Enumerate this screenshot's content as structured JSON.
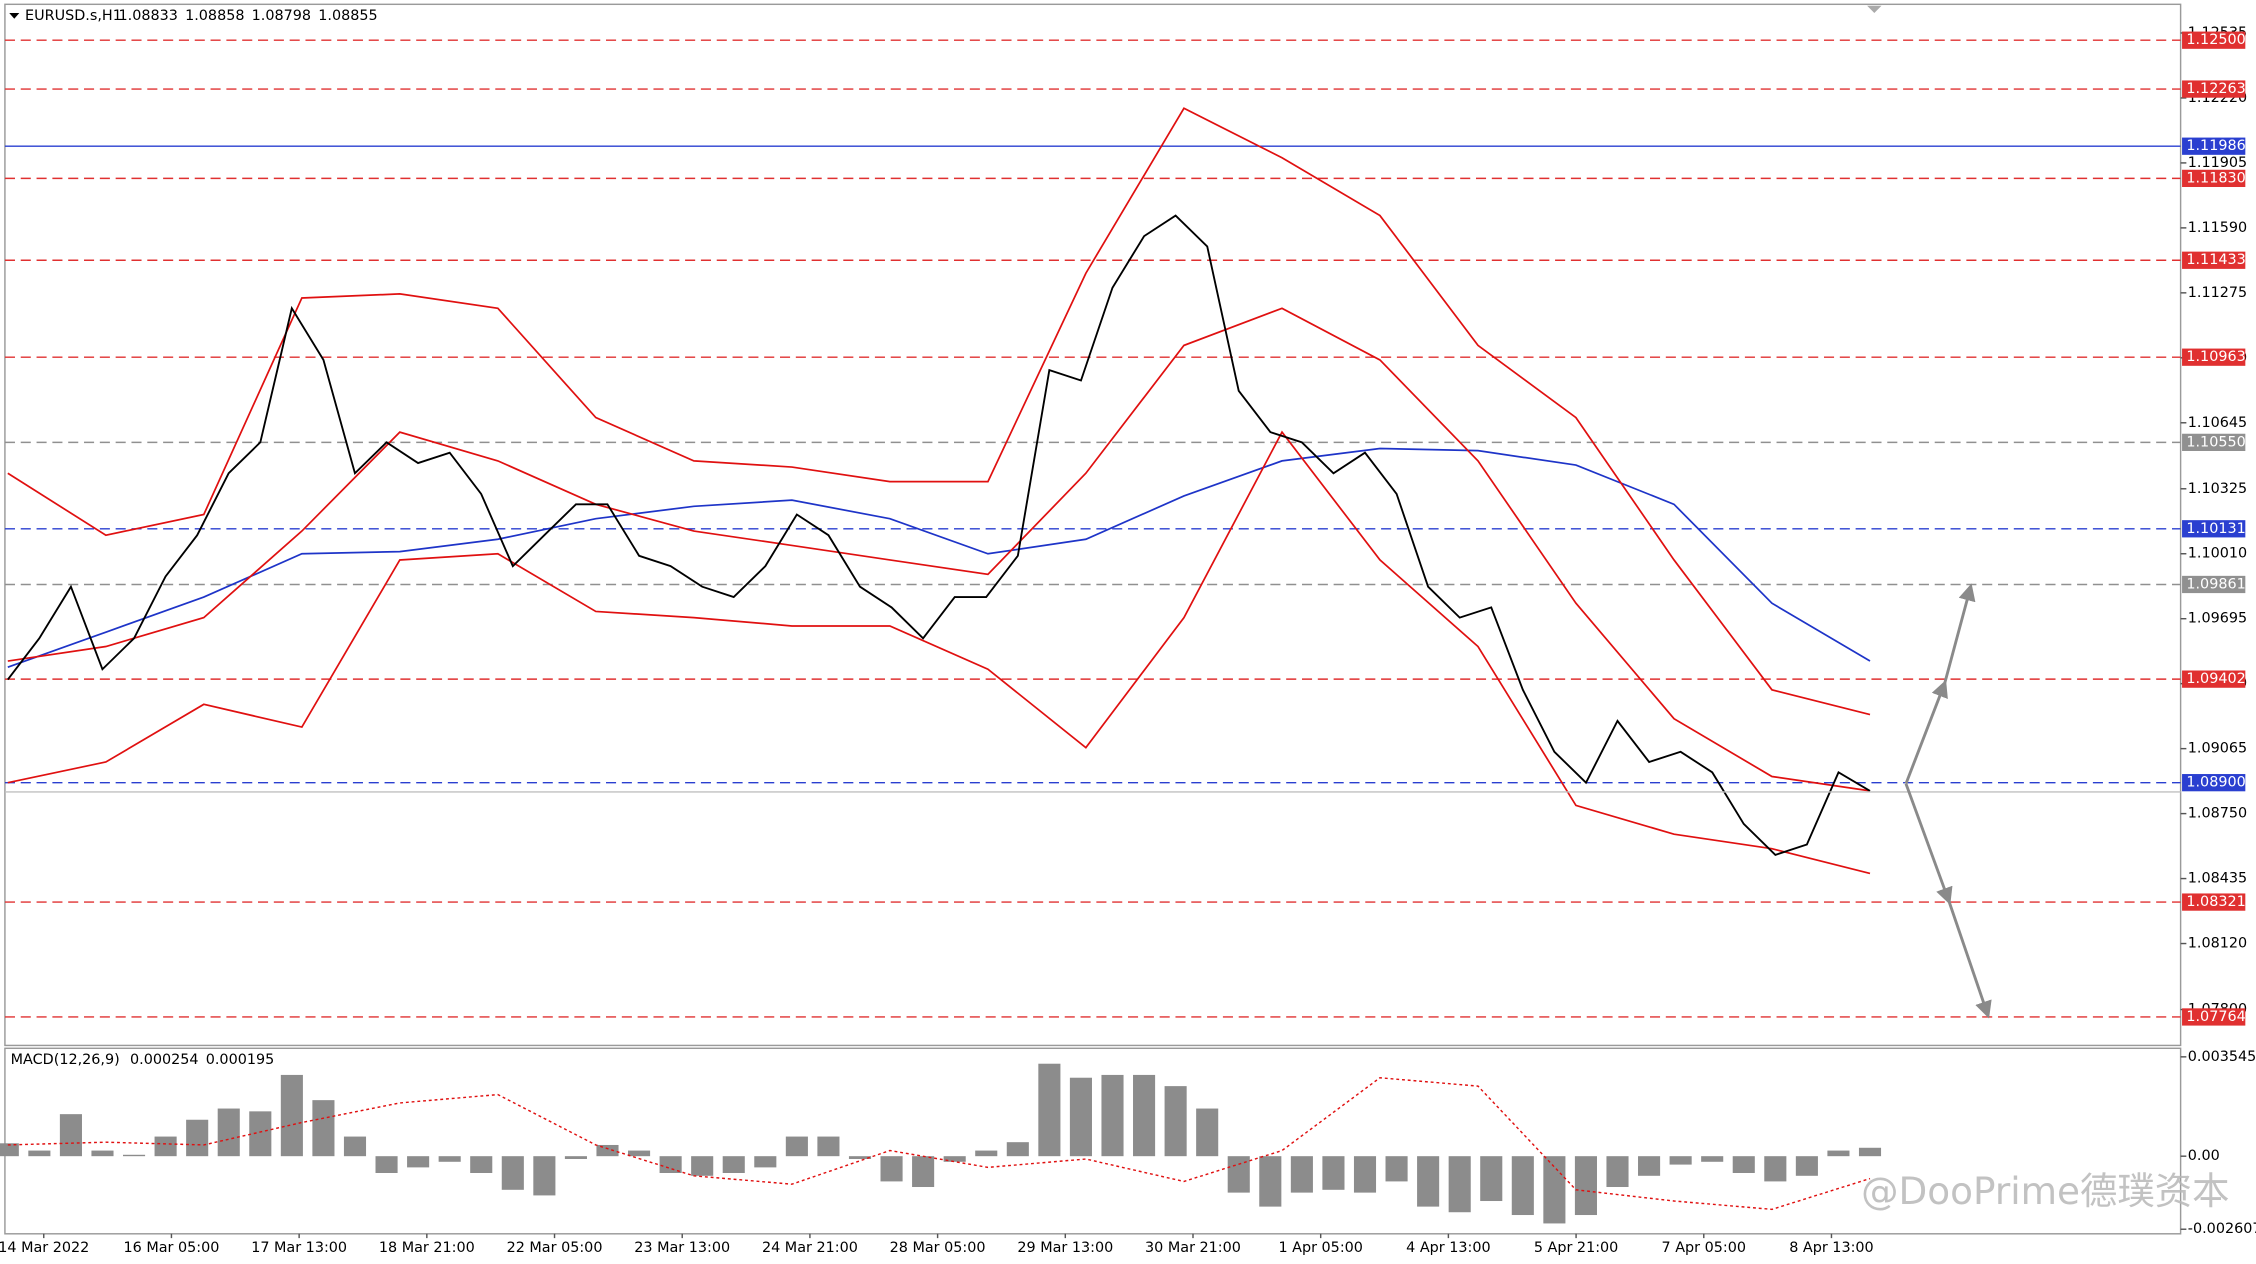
{
  "symbol": "EURUSD.s,H1",
  "quote": [
    1.08833,
    1.08858,
    1.08798,
    1.08855
  ],
  "watermark": "@DooPrime德璞资本",
  "chart_data": [
    {
      "type": "line",
      "ylim": [
        1.07626,
        1.12674
      ],
      "yticks": [
        1.12535,
        {
          "value": 1.1222,
          "label": "1.12220"
        },
        1.11905,
        {
          "value": 1.1159,
          "label": "1.11590"
        },
        1.11275,
        {
          "value": 1.1096,
          "label": "1.10960"
        },
        1.10645,
        1.10325,
        {
          "value": 1.1001,
          "label": "1.10010"
        },
        1.09695,
        {
          "value": 1.0938,
          "label": "1.09380"
        },
        1.09065,
        {
          "value": 1.0875,
          "label": "1.08750"
        },
        1.08435,
        {
          "value": 1.0812,
          "label": "1.08120"
        },
        {
          "value": 1.078,
          "label": "1.07800"
        }
      ],
      "levels": [
        {
          "value": 1.125,
          "label": "1.12500",
          "color": "#e03030",
          "style": "dashed"
        },
        {
          "value": 1.12263,
          "label": "1.12263",
          "color": "#e03030",
          "style": "dashed"
        },
        {
          "value": 1.11986,
          "label": "1.11986",
          "color": "#2a3fd0",
          "style": "solid"
        },
        {
          "value": 1.1183,
          "label": "1.11830",
          "color": "#e03030",
          "style": "dashed"
        },
        {
          "value": 1.11433,
          "label": "1.11433",
          "color": "#e03030",
          "style": "dashed"
        },
        {
          "value": 1.10963,
          "label": "1.10963",
          "color": "#e03030",
          "style": "dashed"
        },
        {
          "value": 1.1055,
          "label": "1.10550",
          "color": "#909090",
          "style": "dashed"
        },
        {
          "value": 1.10131,
          "label": "1.10131",
          "color": "#2a3fd0",
          "style": "dashed"
        },
        {
          "value": 1.09861,
          "label": "1.09861",
          "color": "#909090",
          "style": "dashed"
        },
        {
          "value": 1.09402,
          "label": "1.09402",
          "color": "#e03030",
          "style": "dashed"
        },
        {
          "value": 1.089,
          "label": "1.08900",
          "color": "#2a3fd0",
          "style": "dashed"
        },
        {
          "value": 1.08321,
          "label": "1.08321",
          "color": "#e03030",
          "style": "dashed"
        },
        {
          "value": 1.07764,
          "label": "1.07764",
          "color": "#e03030",
          "style": "dashed"
        }
      ],
      "x_labels": [
        "14 Mar 2022",
        "16 Mar 05:00",
        "17 Mar 13:00",
        "18 Mar 21:00",
        "22 Mar 05:00",
        "23 Mar 13:00",
        "24 Mar 21:00",
        "28 Mar 05:00",
        "29 Mar 13:00",
        "30 Mar 21:00",
        "1 Apr 05:00",
        "4 Apr 13:00",
        "5 Apr 21:00",
        "7 Apr 05:00",
        "8 Apr 13:00"
      ],
      "series": [
        {
          "color": "#1e34c8",
          "values": [
            1.0946,
            1.0963,
            1.098,
            1.1001,
            1.1002,
            1.1008,
            1.1018,
            1.1024,
            1.1027,
            1.1018,
            1.1001,
            1.1008,
            1.1029,
            1.1046,
            1.1052,
            1.1051,
            1.1044,
            1.1025,
            1.0977,
            1.0949
          ]
        },
        {
          "color": "#e01010",
          "values": [
            1.104,
            1.101,
            1.102,
            1.1125,
            1.1127,
            1.112,
            1.1067,
            1.1046,
            1.1043,
            1.1036,
            1.1036,
            1.1137,
            1.1217,
            1.1193,
            1.1165,
            1.1102,
            1.1067,
            1.0998,
            1.0935,
            1.0923
          ]
        },
        {
          "color": "#e01010",
          "values": [
            1.0949,
            1.0956,
            1.097,
            1.1012,
            1.106,
            1.1046,
            1.1025,
            1.1012,
            1.1005,
            1.0998,
            1.0991,
            1.104,
            1.1102,
            1.112,
            1.1095,
            1.1046,
            1.0977,
            1.0921,
            1.0893,
            1.0886
          ]
        },
        {
          "color": "#e01010",
          "values": [
            1.089,
            1.09,
            1.0928,
            1.0917,
            1.0998,
            1.1001,
            1.0973,
            1.097,
            1.0966,
            1.0966,
            1.0945,
            1.0907,
            1.097,
            1.106,
            1.0998,
            1.0956,
            1.0879,
            1.0865,
            1.0858,
            1.0846
          ]
        },
        {
          "color": "#000000",
          "values": [
            1.094,
            1.096,
            1.0985,
            1.0945,
            1.096,
            1.099,
            1.101,
            1.104,
            1.1055,
            1.112,
            1.1095,
            1.104,
            1.1055,
            1.1045,
            1.105,
            1.103,
            1.0995,
            1.101,
            1.1025,
            1.1025,
            1.1,
            1.0995,
            1.0985,
            1.098,
            1.0995,
            1.102,
            1.101,
            1.0985,
            1.0975,
            1.096,
            1.098,
            1.098,
            1.1,
            1.109,
            1.1085,
            1.113,
            1.1155,
            1.1165,
            1.115,
            1.108,
            1.106,
            1.1055,
            1.104,
            1.105,
            1.103,
            1.0985,
            1.097,
            1.0975,
            1.0935,
            1.0905,
            1.089,
            1.092,
            1.09,
            1.0905,
            1.0895,
            1.087,
            1.0855,
            1.086,
            1.0895,
            1.0886
          ]
        }
      ]
    },
    {
      "type": "bar",
      "title": "MACD(12,26,9)",
      "current": [
        0.000254,
        0.000195
      ],
      "ylim": [
        -0.00277,
        0.00385
      ],
      "yticks": [
        0.003545,
        {
          "value": 0,
          "label": "0.00"
        },
        -0.002607
      ],
      "color": "#8c8c8c",
      "values": [
        0.00046,
        0.0002,
        0.0015,
        0.0002,
        5e-05,
        0.0007,
        0.0013,
        0.0017,
        0.0016,
        0.0029,
        0.002,
        0.0007,
        -0.0006,
        -0.0004,
        -0.0002,
        -0.0006,
        -0.0012,
        -0.0014,
        -0.0001,
        0.0004,
        0.0002,
        -0.0006,
        -0.0007,
        -0.0006,
        -0.0004,
        0.0007,
        0.0007,
        -0.0001,
        -0.0009,
        -0.0011,
        -0.0002,
        0.0002,
        0.0005,
        0.0033,
        0.0028,
        0.0029,
        0.0029,
        0.0025,
        0.0017,
        -0.0013,
        -0.0018,
        -0.0013,
        -0.0012,
        -0.0013,
        -0.0009,
        -0.0018,
        -0.002,
        -0.0016,
        -0.0021,
        -0.0024,
        -0.0021,
        -0.0011,
        -0.0007,
        -0.0003,
        -0.0002,
        -0.0006,
        -0.0009,
        -0.0007,
        0.0002,
        0.0003
      ],
      "signal": {
        "color": "#e01010",
        "values": [
          0.0004,
          0.0005,
          0.0004,
          0.0012,
          0.0019,
          0.0022,
          0.0004,
          -0.0007,
          -0.001,
          0.0002,
          -0.0004,
          -0.0001,
          -0.0009,
          0.0002,
          0.0028,
          0.0025,
          -0.0012,
          -0.0016,
          -0.0019,
          -0.0008
        ]
      }
    }
  ]
}
